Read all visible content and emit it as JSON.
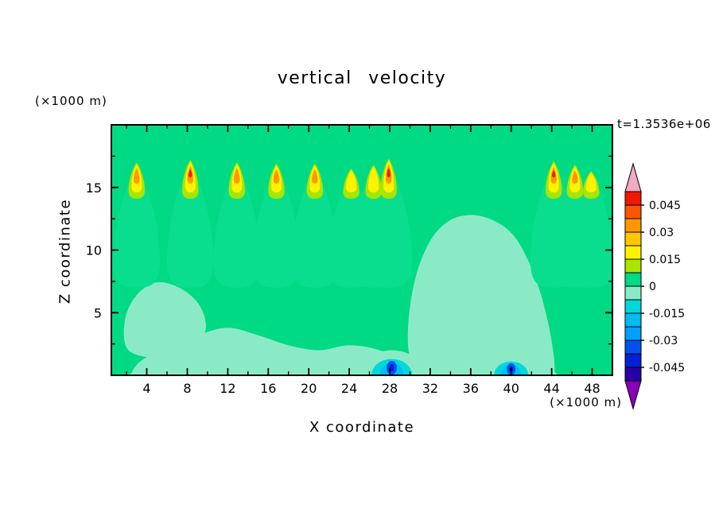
{
  "chart_data": {
    "type": "heatmap",
    "title": "vertical velocity",
    "time_label": "t=1.3536e+06",
    "xlabel": "X coordinate",
    "ylabel": "Z coordinate",
    "x_units_label": "(×1000 m)",
    "y_units_label": "(×1000 m)",
    "xlim": [
      0.5,
      50
    ],
    "ylim": [
      0,
      20
    ],
    "grid": false,
    "x_ticks": {
      "values": [
        4,
        8,
        12,
        16,
        20,
        24,
        28,
        32,
        36,
        40,
        44,
        48
      ],
      "labels": [
        "4",
        "8",
        "12",
        "16",
        "20",
        "24",
        "28",
        "32",
        "36",
        "40",
        "44",
        "48"
      ]
    },
    "x_minor_ticks": [
      2,
      6,
      10,
      14,
      18,
      22,
      26,
      30,
      34,
      38,
      42,
      46,
      50
    ],
    "y_ticks": {
      "values": [
        5,
        10,
        15
      ],
      "labels": [
        "5",
        "10",
        "15"
      ]
    },
    "y_minor_ticks": [
      2.5,
      7.5,
      12.5,
      17.5
    ],
    "colorbar": {
      "tick_labels": [
        "0.045",
        "0.03",
        "0.015",
        "0",
        "-0.015",
        "-0.03",
        "-0.045"
      ],
      "tick_values": [
        0.045,
        0.03,
        0.015,
        0,
        -0.015,
        -0.03,
        -0.045
      ],
      "level_step": 0.0075,
      "level_range": [
        -0.0525,
        0.0525
      ],
      "band_colors_top_to_bottom": [
        "#F01800",
        "#FF5400",
        "#FF9800",
        "#FFC800",
        "#FFF200",
        "#A8E600",
        "#00DA84",
        "#8BEAC6",
        "#00D8DC",
        "#00BCF0",
        "#00A0FF",
        "#0050F0",
        "#0020D8",
        "#2800A8"
      ],
      "over_arrow_color": "#F2A9C4",
      "under_arrow_color": "#8800B8"
    },
    "palette": {
      "background": "#00DA84",
      "cone": "#09DE8E",
      "pale": "#8BEAC6",
      "yellow_green": "#A8E600",
      "yellow": "#FFF200",
      "orange": "#FF9800",
      "red": "#F01800",
      "cyan": "#00D8DC",
      "sky": "#00BCF0",
      "blue": "#0050F0",
      "dark_blue": "#0020D8"
    },
    "features": {
      "background_band": "0 to 0.0075",
      "updraft_plumes": [
        {
          "x": 3.0,
          "tip_z": 17.0,
          "strength": "orange"
        },
        {
          "x": 8.3,
          "tip_z": 17.2,
          "strength": "red"
        },
        {
          "x": 12.9,
          "tip_z": 17.0,
          "strength": "orange"
        },
        {
          "x": 16.8,
          "tip_z": 16.9,
          "strength": "orange"
        },
        {
          "x": 20.6,
          "tip_z": 16.9,
          "strength": "orange"
        },
        {
          "x": 24.2,
          "tip_z": 16.5,
          "strength": "yellow"
        },
        {
          "x": 26.4,
          "tip_z": 16.8,
          "strength": "yellow"
        },
        {
          "x": 27.9,
          "tip_z": 17.3,
          "strength": "red"
        },
        {
          "x": 44.2,
          "tip_z": 17.1,
          "strength": "red"
        },
        {
          "x": 46.3,
          "tip_z": 16.8,
          "strength": "orange"
        },
        {
          "x": 47.9,
          "tip_z": 16.3,
          "strength": "yellow"
        }
      ],
      "downdraft_spots": [
        {
          "x": 28.2,
          "z": 0.6,
          "strength": "blue",
          "scale": 1.0
        },
        {
          "x": 40.0,
          "z": 0.5,
          "strength": "blue",
          "scale": 0.85
        }
      ],
      "subsidence_regions": [
        {
          "name": "left-lower-blob",
          "points": [
            [
              2.2,
              2.0
            ],
            [
              1.8,
              4.2
            ],
            [
              2.8,
              6.2
            ],
            [
              4.8,
              7.4
            ],
            [
              7.2,
              7.0
            ],
            [
              9.2,
              5.6
            ],
            [
              9.8,
              3.6
            ],
            [
              8.2,
              2.0
            ],
            [
              5.2,
              1.4
            ]
          ]
        },
        {
          "name": "bottom-streak",
          "points": [
            [
              2.5,
              0.2
            ],
            [
              3.5,
              1.2
            ],
            [
              6.0,
              2.2
            ],
            [
              9.0,
              3.2
            ],
            [
              12.0,
              3.8
            ],
            [
              15.0,
              3.2
            ],
            [
              18.0,
              2.4
            ],
            [
              21.0,
              2.0
            ],
            [
              24.0,
              2.4
            ],
            [
              27.0,
              2.0
            ],
            [
              29.0,
              1.0
            ],
            [
              29.6,
              0.3
            ],
            [
              29.6,
              -0.5
            ],
            [
              2.5,
              -0.5
            ]
          ]
        },
        {
          "name": "right-center-region",
          "points": [
            [
              30.3,
              0.3
            ],
            [
              29.8,
              2.5
            ],
            [
              30.0,
              5.5
            ],
            [
              30.8,
              8.5
            ],
            [
              32.2,
              11.0
            ],
            [
              34.0,
              12.4
            ],
            [
              36.2,
              12.8
            ],
            [
              38.4,
              12.3
            ],
            [
              40.2,
              11.2
            ],
            [
              41.6,
              9.3
            ],
            [
              42.8,
              6.8
            ],
            [
              43.7,
              4.0
            ],
            [
              44.2,
              1.6
            ],
            [
              44.3,
              0.3
            ],
            [
              44.3,
              -0.5
            ],
            [
              30.3,
              -0.5
            ]
          ]
        }
      ]
    }
  }
}
